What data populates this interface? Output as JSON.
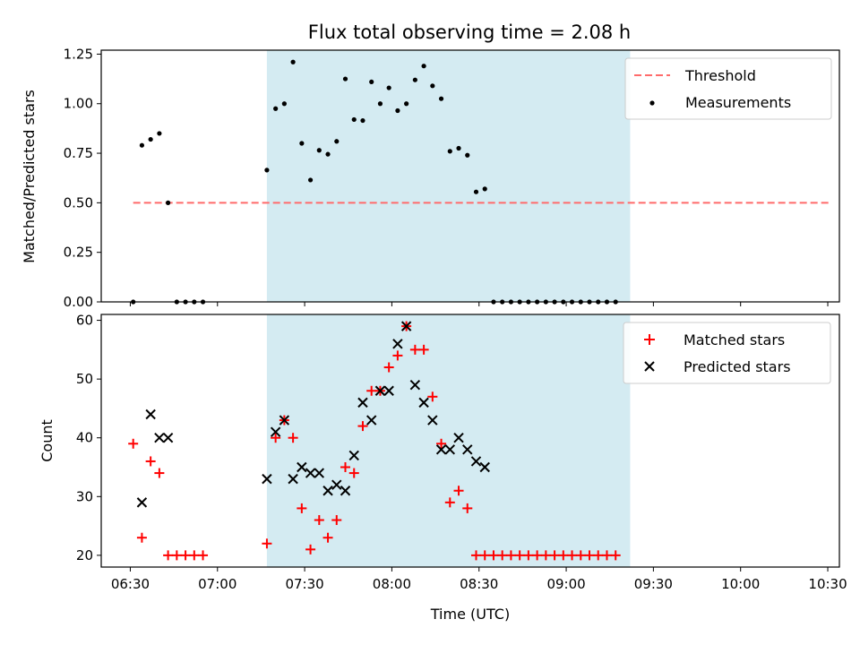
{
  "chart_data": {
    "title": "Flux total observing time = 2.08 h",
    "xlabel": "Time (UTC)",
    "x_ticks": [
      "06:30",
      "07:00",
      "07:30",
      "08:00",
      "08:30",
      "09:00",
      "09:30",
      "10:00",
      "10:30"
    ],
    "x_range": [
      "06:20",
      "10:34"
    ],
    "highlight_span": [
      "07:17",
      "09:22"
    ],
    "highlight_color": "#add8e6",
    "panels": [
      {
        "type": "scatter",
        "ylabel": "Matched/Predicted stars",
        "ylim": [
          0,
          1.27
        ],
        "y_ticks": [
          "0.00",
          "0.25",
          "0.50",
          "0.75",
          "1.00",
          "1.25"
        ],
        "legend_position": "top-right",
        "threshold": {
          "name": "Threshold",
          "value": 0.5,
          "x_start": "06:31",
          "x_end": "10:31",
          "color": "#ff6b6b"
        },
        "series": [
          {
            "name": "Measurements",
            "color": "#000000",
            "points": [
              [
                "06:31",
                0.0
              ],
              [
                "06:34",
                0.79
              ],
              [
                "06:37",
                0.82
              ],
              [
                "06:40",
                0.85
              ],
              [
                "06:43",
                0.5
              ],
              [
                "06:46",
                0.0
              ],
              [
                "06:49",
                0.0
              ],
              [
                "06:52",
                0.0
              ],
              [
                "06:55",
                0.0
              ],
              [
                "07:17",
                0.665
              ],
              [
                "07:20",
                0.975
              ],
              [
                "07:23",
                1.0
              ],
              [
                "07:26",
                1.21
              ],
              [
                "07:29",
                0.8
              ],
              [
                "07:32",
                0.615
              ],
              [
                "07:35",
                0.765
              ],
              [
                "07:38",
                0.745
              ],
              [
                "07:41",
                0.81
              ],
              [
                "07:44",
                1.125
              ],
              [
                "07:47",
                0.92
              ],
              [
                "07:50",
                0.915
              ],
              [
                "07:53",
                1.11
              ],
              [
                "07:56",
                1.0
              ],
              [
                "07:59",
                1.08
              ],
              [
                "08:02",
                0.965
              ],
              [
                "08:05",
                1.0
              ],
              [
                "08:08",
                1.12
              ],
              [
                "08:11",
                1.19
              ],
              [
                "08:14",
                1.09
              ],
              [
                "08:17",
                1.025
              ],
              [
                "08:20",
                0.76
              ],
              [
                "08:23",
                0.775
              ],
              [
                "08:26",
                0.74
              ],
              [
                "08:29",
                0.555
              ],
              [
                "08:32",
                0.57
              ],
              [
                "08:35",
                0.0
              ],
              [
                "08:38",
                0.0
              ],
              [
                "08:41",
                0.0
              ],
              [
                "08:44",
                0.0
              ],
              [
                "08:47",
                0.0
              ],
              [
                "08:50",
                0.0
              ],
              [
                "08:53",
                0.0
              ],
              [
                "08:56",
                0.0
              ],
              [
                "08:59",
                0.0
              ],
              [
                "09:02",
                0.0
              ],
              [
                "09:05",
                0.0
              ],
              [
                "09:08",
                0.0
              ],
              [
                "09:11",
                0.0
              ],
              [
                "09:14",
                0.0
              ],
              [
                "09:17",
                0.0
              ]
            ]
          }
        ]
      },
      {
        "type": "scatter",
        "ylabel": "Count",
        "ylim": [
          18,
          61
        ],
        "y_ticks": [
          "20",
          "30",
          "40",
          "50",
          "60"
        ],
        "legend_position": "top-right",
        "series": [
          {
            "name": "Matched stars",
            "marker": "plus",
            "color": "#ff0000",
            "points": [
              [
                "06:31",
                39
              ],
              [
                "06:34",
                23
              ],
              [
                "06:37",
                36
              ],
              [
                "06:40",
                34
              ],
              [
                "06:43",
                20
              ],
              [
                "06:46",
                20
              ],
              [
                "06:49",
                20
              ],
              [
                "06:52",
                20
              ],
              [
                "06:55",
                20
              ],
              [
                "07:17",
                22
              ],
              [
                "07:20",
                40
              ],
              [
                "07:23",
                43
              ],
              [
                "07:26",
                40
              ],
              [
                "07:29",
                28
              ],
              [
                "07:32",
                21
              ],
              [
                "07:35",
                26
              ],
              [
                "07:38",
                23
              ],
              [
                "07:41",
                26
              ],
              [
                "07:44",
                35
              ],
              [
                "07:47",
                34
              ],
              [
                "07:50",
                42
              ],
              [
                "07:53",
                48
              ],
              [
                "07:56",
                48
              ],
              [
                "07:59",
                52
              ],
              [
                "08:02",
                54
              ],
              [
                "08:05",
                59
              ],
              [
                "08:08",
                55
              ],
              [
                "08:11",
                55
              ],
              [
                "08:14",
                47
              ],
              [
                "08:17",
                39
              ],
              [
                "08:20",
                29
              ],
              [
                "08:23",
                31
              ],
              [
                "08:26",
                28
              ],
              [
                "08:29",
                20
              ],
              [
                "08:32",
                20
              ],
              [
                "08:35",
                20
              ],
              [
                "08:38",
                20
              ],
              [
                "08:41",
                20
              ],
              [
                "08:44",
                20
              ],
              [
                "08:47",
                20
              ],
              [
                "08:50",
                20
              ],
              [
                "08:53",
                20
              ],
              [
                "08:56",
                20
              ],
              [
                "08:59",
                20
              ],
              [
                "09:02",
                20
              ],
              [
                "09:05",
                20
              ],
              [
                "09:08",
                20
              ],
              [
                "09:11",
                20
              ],
              [
                "09:14",
                20
              ],
              [
                "09:17",
                20
              ]
            ]
          },
          {
            "name": "Predicted stars",
            "marker": "x",
            "color": "#000000",
            "points": [
              [
                "06:34",
                29
              ],
              [
                "06:37",
                44
              ],
              [
                "06:40",
                40
              ],
              [
                "06:43",
                40
              ],
              [
                "07:17",
                33
              ],
              [
                "07:20",
                41
              ],
              [
                "07:23",
                43
              ],
              [
                "07:26",
                33
              ],
              [
                "07:29",
                35
              ],
              [
                "07:32",
                34
              ],
              [
                "07:35",
                34
              ],
              [
                "07:38",
                31
              ],
              [
                "07:41",
                32
              ],
              [
                "07:44",
                31
              ],
              [
                "07:47",
                37
              ],
              [
                "07:50",
                46
              ],
              [
                "07:53",
                43
              ],
              [
                "07:56",
                48
              ],
              [
                "07:59",
                48
              ],
              [
                "08:02",
                56
              ],
              [
                "08:05",
                59
              ],
              [
                "08:08",
                49
              ],
              [
                "08:11",
                46
              ],
              [
                "08:14",
                43
              ],
              [
                "08:17",
                38
              ],
              [
                "08:20",
                38
              ],
              [
                "08:23",
                40
              ],
              [
                "08:26",
                38
              ],
              [
                "08:29",
                36
              ],
              [
                "08:32",
                35
              ]
            ]
          }
        ]
      }
    ]
  }
}
